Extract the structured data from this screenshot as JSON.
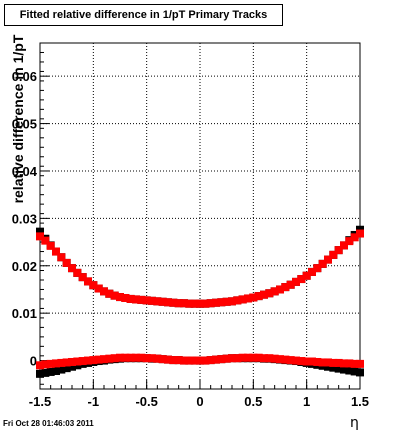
{
  "canvas_title": "Fitted relative difference in 1/pT  Primary Tracks",
  "timestamp": "Fri Oct 28 01:46:03 2011",
  "chart_data": {
    "type": "scatter",
    "title": "Fitted relative difference in 1/pT  Primary Tracks",
    "xlabel": "η",
    "ylabel": "relative difference in 1/pT",
    "xlim": [
      -1.5,
      1.5
    ],
    "ylim": [
      -0.006,
      0.067
    ],
    "xticks": [
      -1.5,
      -1,
      -0.5,
      0,
      0.5,
      1,
      1.5
    ],
    "xtick_labels": [
      "-1.5",
      "-1",
      "-0.5",
      "0",
      "0.5",
      "1",
      "1.5"
    ],
    "yticks": [
      0,
      0.01,
      0.02,
      0.03,
      0.04,
      0.05,
      0.06
    ],
    "ytick_labels": [
      "0",
      "0.01",
      "0.02",
      "0.03",
      "0.04",
      "0.05",
      "0.06"
    ],
    "grid": true,
    "x": [
      -1.5,
      -1.45,
      -1.4,
      -1.35,
      -1.3,
      -1.25,
      -1.2,
      -1.15,
      -1.1,
      -1.05,
      -1.0,
      -0.95,
      -0.9,
      -0.85,
      -0.8,
      -0.75,
      -0.7,
      -0.65,
      -0.6,
      -0.55,
      -0.5,
      -0.45,
      -0.4,
      -0.35,
      -0.3,
      -0.25,
      -0.2,
      -0.15,
      -0.1,
      -0.05,
      0.0,
      0.05,
      0.1,
      0.15,
      0.2,
      0.25,
      0.3,
      0.35,
      0.4,
      0.45,
      0.5,
      0.55,
      0.6,
      0.65,
      0.7,
      0.75,
      0.8,
      0.85,
      0.9,
      0.95,
      1.0,
      1.05,
      1.1,
      1.15,
      1.2,
      1.25,
      1.3,
      1.35,
      1.4,
      1.45,
      1.5
    ],
    "series": [
      {
        "color": "#000000",
        "values": [
          0.0272,
          0.0257,
          0.0243,
          0.023,
          0.0218,
          0.0206,
          0.0195,
          0.0185,
          0.0176,
          0.0167,
          0.0159,
          0.0152,
          0.0146,
          0.0141,
          0.0137,
          0.0134,
          0.0132,
          0.013,
          0.0129,
          0.0128,
          0.0127,
          0.0126,
          0.0125,
          0.0124,
          0.0123,
          0.0122,
          0.0121,
          0.0121,
          0.012,
          0.012,
          0.012,
          0.012,
          0.0121,
          0.0122,
          0.0123,
          0.0124,
          0.0125,
          0.0127,
          0.0129,
          0.0131,
          0.0133,
          0.0136,
          0.0139,
          0.0142,
          0.0146,
          0.015,
          0.0155,
          0.016,
          0.0166,
          0.0172,
          0.0179,
          0.0187,
          0.0195,
          0.0204,
          0.0213,
          0.0223,
          0.0233,
          0.0243,
          0.0254,
          0.0265,
          0.0276
        ]
      },
      {
        "color": "#ff0000",
        "values": [
          0.0262,
          0.0253,
          0.0242,
          0.023,
          0.0218,
          0.0206,
          0.0195,
          0.0185,
          0.0176,
          0.0167,
          0.0159,
          0.0152,
          0.0146,
          0.0141,
          0.0137,
          0.0134,
          0.0132,
          0.013,
          0.0129,
          0.0128,
          0.0127,
          0.0126,
          0.0125,
          0.0124,
          0.0123,
          0.0122,
          0.0121,
          0.0121,
          0.012,
          0.012,
          0.012,
          0.012,
          0.0121,
          0.0122,
          0.0123,
          0.0124,
          0.0125,
          0.0127,
          0.0129,
          0.0131,
          0.0133,
          0.0136,
          0.0139,
          0.0142,
          0.0146,
          0.015,
          0.0155,
          0.016,
          0.0166,
          0.0172,
          0.0179,
          0.0187,
          0.0195,
          0.0204,
          0.0213,
          0.0223,
          0.0233,
          0.0243,
          0.0252,
          0.026,
          0.0268
        ]
      },
      {
        "color": "#000000",
        "values": [
          -0.0028,
          -0.0026,
          -0.0024,
          -0.0022,
          -0.0019,
          -0.0016,
          -0.0013,
          -0.001,
          -0.0007,
          -0.0005,
          -0.0003,
          -0.0001,
          0.0,
          0.0002,
          0.0003,
          0.0004,
          0.0005,
          0.0005,
          0.0005,
          0.0005,
          0.0005,
          0.0004,
          0.0004,
          0.0003,
          0.0002,
          0.0001,
          0.0001,
          0.0,
          0.0,
          0.0,
          0.0,
          0.0,
          0.0001,
          0.0002,
          0.0003,
          0.0004,
          0.0005,
          0.0005,
          0.0005,
          0.0005,
          0.0005,
          0.0005,
          0.0004,
          0.0004,
          0.0003,
          0.0002,
          0.0001,
          0.0,
          -0.0001,
          -0.0003,
          -0.0005,
          -0.0007,
          -0.0009,
          -0.0011,
          -0.0013,
          -0.0015,
          -0.0017,
          -0.0019,
          -0.0021,
          -0.0023,
          -0.0025
        ]
      },
      {
        "color": "#ff0000",
        "values": [
          -0.001,
          -0.0008,
          -0.0007,
          -0.0006,
          -0.0005,
          -0.0004,
          -0.0003,
          -0.0002,
          -0.0001,
          0.0,
          0.0001,
          0.0002,
          0.0003,
          0.0004,
          0.0005,
          0.0006,
          0.0006,
          0.0006,
          0.0006,
          0.0006,
          0.0005,
          0.0005,
          0.0004,
          0.0003,
          0.0002,
          0.0001,
          0.0001,
          0.0,
          0.0,
          0.0,
          0.0,
          0.0,
          0.0001,
          0.0002,
          0.0003,
          0.0004,
          0.0005,
          0.0005,
          0.0006,
          0.0006,
          0.0006,
          0.0006,
          0.0005,
          0.0005,
          0.0004,
          0.0003,
          0.0002,
          0.0001,
          0.0,
          -0.0001,
          -0.0002,
          -0.0002,
          -0.0003,
          -0.0004,
          -0.0004,
          -0.0005,
          -0.0005,
          -0.0006,
          -0.0006,
          -0.0007,
          -0.0007
        ]
      }
    ]
  }
}
